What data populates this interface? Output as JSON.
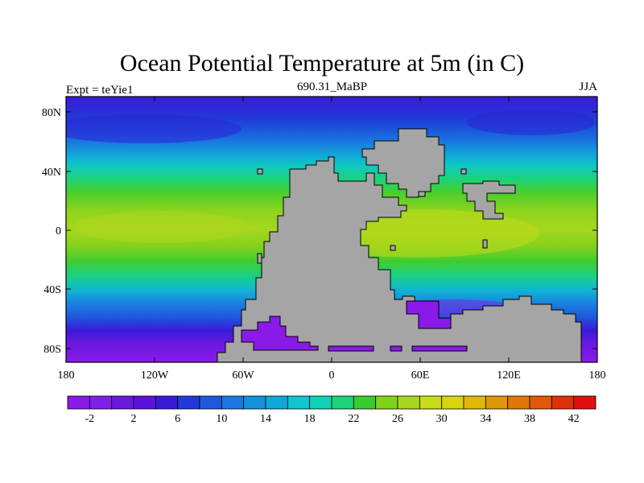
{
  "header": {
    "title": "Ocean Potential Temperature at 5m (in C)",
    "left_label": "Expt = teYie1",
    "center_label": "690.31_MaBP",
    "right_label": "JJA"
  },
  "map": {
    "lat_ticks": [
      "80N",
      "40N",
      "0",
      "40S",
      "80S"
    ],
    "lon_ticks": [
      "180",
      "120W",
      "60W",
      "0",
      "60E",
      "120E",
      "180"
    ],
    "land_color": "#a5a5a5"
  },
  "colorbar": {
    "labels": [
      "-2",
      "2",
      "6",
      "10",
      "14",
      "18",
      "22",
      "26",
      "30",
      "34",
      "38",
      "42"
    ],
    "colors": [
      "#8a1ae8",
      "#8020e6",
      "#6a18e0",
      "#5a12dc",
      "#3a1ad8",
      "#2438d8",
      "#1e58dc",
      "#1a78e0",
      "#1690dc",
      "#10a8d8",
      "#10c4d0",
      "#10d2b4",
      "#1cd27a",
      "#38cc30",
      "#7ed21c",
      "#a8d61e",
      "#c8dc1a",
      "#d8d410",
      "#e0b808",
      "#e09808",
      "#e07808",
      "#e05808",
      "#e03008",
      "#e01010"
    ]
  }
}
